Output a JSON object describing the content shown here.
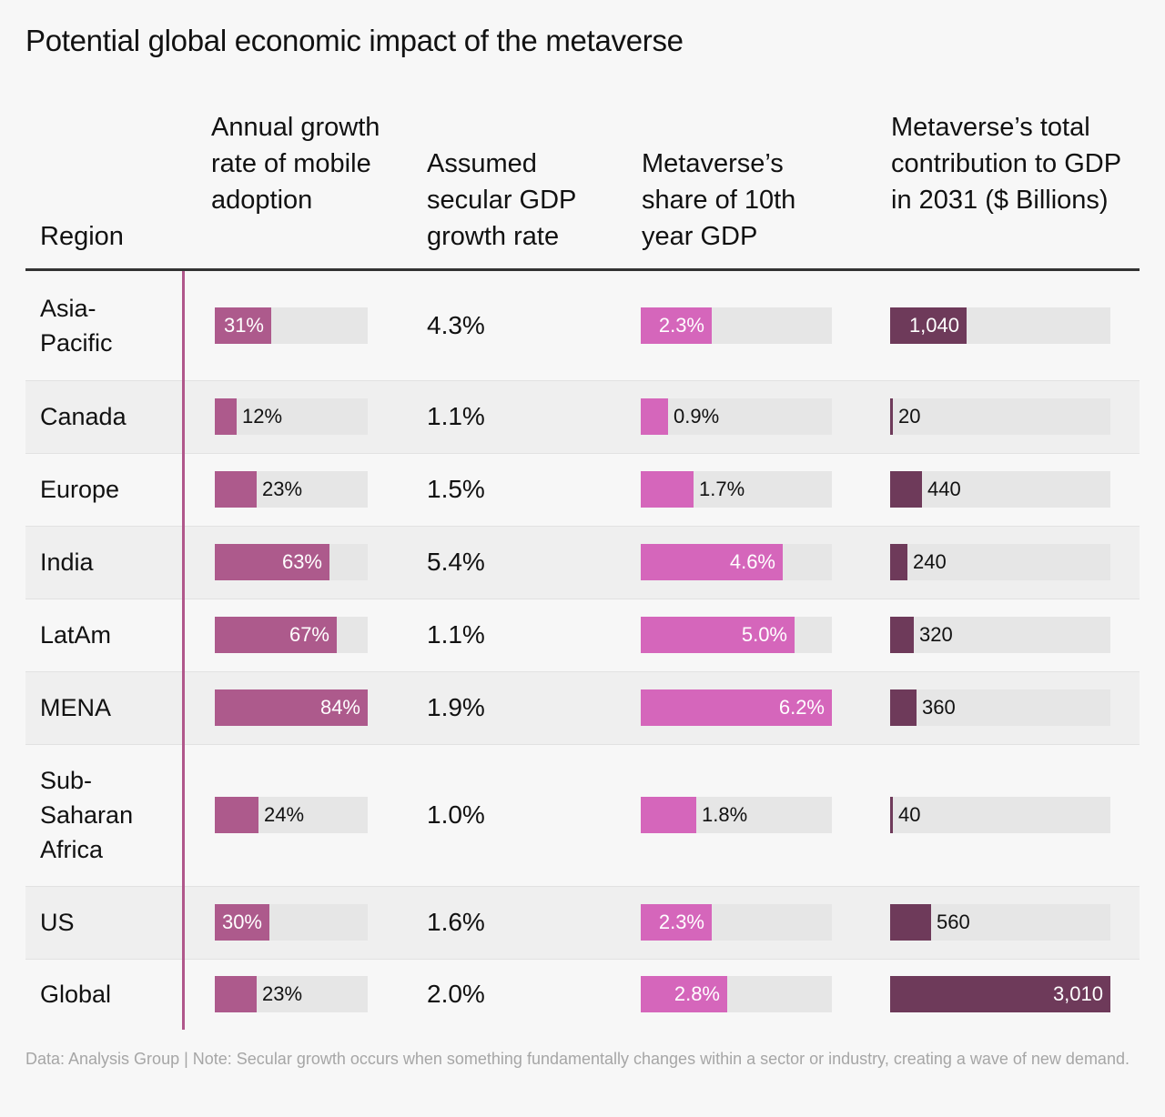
{
  "chart_data": {
    "type": "table",
    "title": "Potential global economic impact of the metaverse",
    "columns": [
      "Region",
      "Annual growth rate of mobile adoption",
      "Assumed secular GDP growth rate",
      "Metaverse’s share of 10th year GDP",
      "Metaverse’s total contribution to GDP in 2031 ($ Billions)"
    ],
    "rows": [
      {
        "region": "Asia-Pacific",
        "mobile_adoption": 31,
        "mobile_adoption_label": "31%",
        "gdp_growth": "4.3%",
        "share": 2.3,
        "share_label": "2.3%",
        "contribution": 1040,
        "contribution_label": "1,040"
      },
      {
        "region": "Canada",
        "mobile_adoption": 12,
        "mobile_adoption_label": "12%",
        "gdp_growth": "1.1%",
        "share": 0.9,
        "share_label": "0.9%",
        "contribution": 20,
        "contribution_label": "20"
      },
      {
        "region": "Europe",
        "mobile_adoption": 23,
        "mobile_adoption_label": "23%",
        "gdp_growth": "1.5%",
        "share": 1.7,
        "share_label": "1.7%",
        "contribution": 440,
        "contribution_label": "440"
      },
      {
        "region": "India",
        "mobile_adoption": 63,
        "mobile_adoption_label": "63%",
        "gdp_growth": "5.4%",
        "share": 4.6,
        "share_label": "4.6%",
        "contribution": 240,
        "contribution_label": "240"
      },
      {
        "region": "LatAm",
        "mobile_adoption": 67,
        "mobile_adoption_label": "67%",
        "gdp_growth": "1.1%",
        "share": 5.0,
        "share_label": "5.0%",
        "contribution": 320,
        "contribution_label": "320"
      },
      {
        "region": "MENA",
        "mobile_adoption": 84,
        "mobile_adoption_label": "84%",
        "gdp_growth": "1.9%",
        "share": 6.2,
        "share_label": "6.2%",
        "contribution": 360,
        "contribution_label": "360"
      },
      {
        "region": "Sub-Saharan Africa",
        "mobile_adoption": 24,
        "mobile_adoption_label": "24%",
        "gdp_growth": "1.0%",
        "share": 1.8,
        "share_label": "1.8%",
        "contribution": 40,
        "contribution_label": "40"
      },
      {
        "region": "US",
        "mobile_adoption": 30,
        "mobile_adoption_label": "30%",
        "gdp_growth": "1.6%",
        "share": 2.3,
        "share_label": "2.3%",
        "contribution": 560,
        "contribution_label": "560"
      },
      {
        "region": "Global",
        "mobile_adoption": 23,
        "mobile_adoption_label": "23%",
        "gdp_growth": "2.0%",
        "share": 2.8,
        "share_label": "2.8%",
        "contribution": 3010,
        "contribution_label": "3,010"
      }
    ],
    "scales": {
      "mobile_adoption_max": 84,
      "share_max": 6.2,
      "contribution_max": 3010
    },
    "colors": {
      "mobile_adoption": "#ad5a8c",
      "share": "#d566bb",
      "contribution": "#6e3a5a",
      "track": "#e6e6e6",
      "accent_rule": "#b0578b"
    }
  },
  "footnote": "Data: Analysis Group | Note: Secular growth occurs when something fundamentally changes within a sector or industry, creating a wave of new demand."
}
